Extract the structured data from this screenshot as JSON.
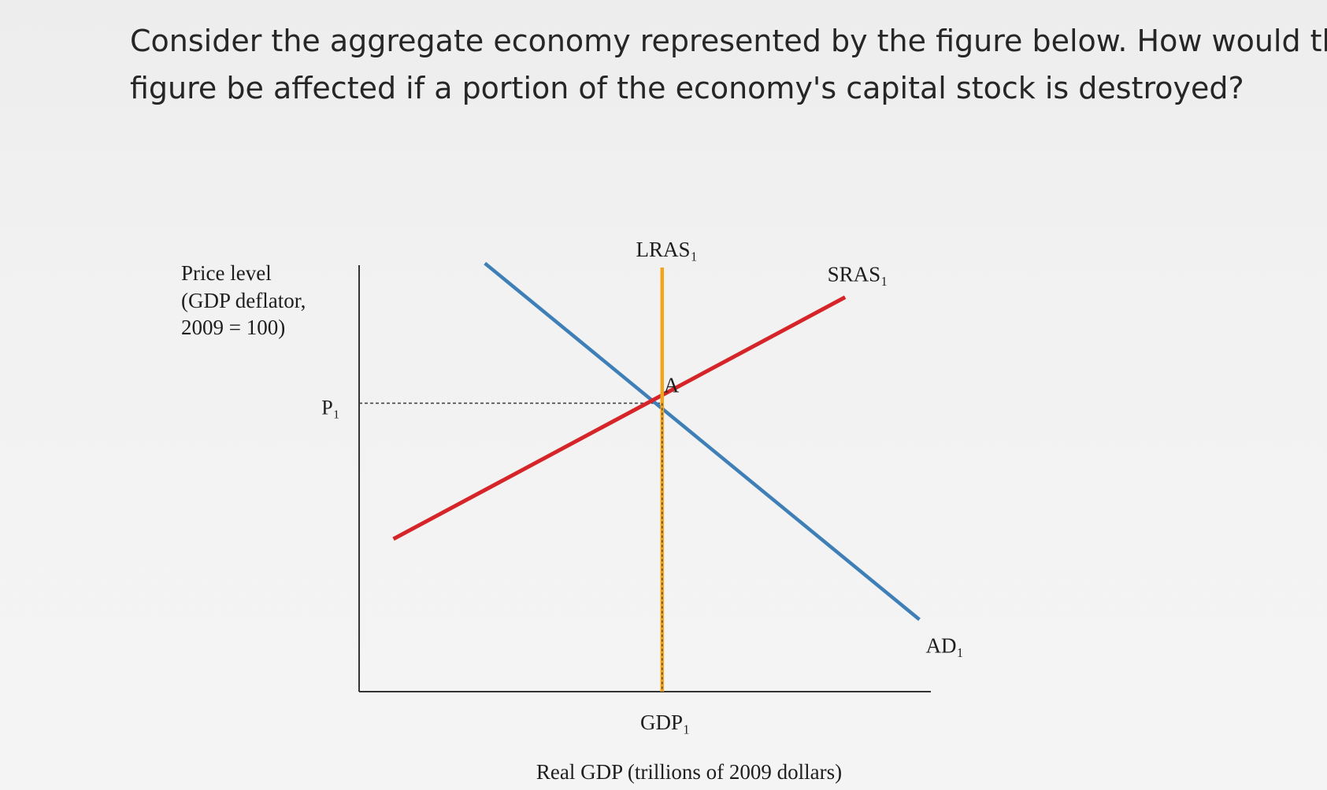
{
  "question": {
    "line1": "Consider the aggregate economy represented by the figure below.  How would this",
    "line2": "figure be affected if a portion of the economy's capital stock is destroyed?"
  },
  "chart_data": {
    "type": "line",
    "title": "",
    "ylabel_lines": [
      "Price level",
      "(GDP deflator,",
      "2009 = 100)"
    ],
    "xlabel": "Real GDP (trillions of 2009 dollars)",
    "x_ticks": [
      "GDP₁"
    ],
    "y_ticks": [
      "P₁"
    ],
    "xlim": [
      0,
      100
    ],
    "ylim": [
      0,
      100
    ],
    "series": [
      {
        "name": "AD₁",
        "color": "#3f7fb8",
        "points": [
          [
            22,
            101
          ],
          [
            98,
            17
          ]
        ]
      },
      {
        "name": "SRAS₁",
        "color": "#d62528",
        "points": [
          [
            6,
            36
          ],
          [
            85,
            93
          ]
        ]
      },
      {
        "name": "LRAS₁",
        "color": "#f2a41b",
        "points": [
          [
            53,
            0
          ],
          [
            53,
            100
          ]
        ]
      }
    ],
    "equilibrium": {
      "label": "A",
      "x": 53,
      "y": 68
    },
    "grid": false,
    "legend": "none"
  }
}
